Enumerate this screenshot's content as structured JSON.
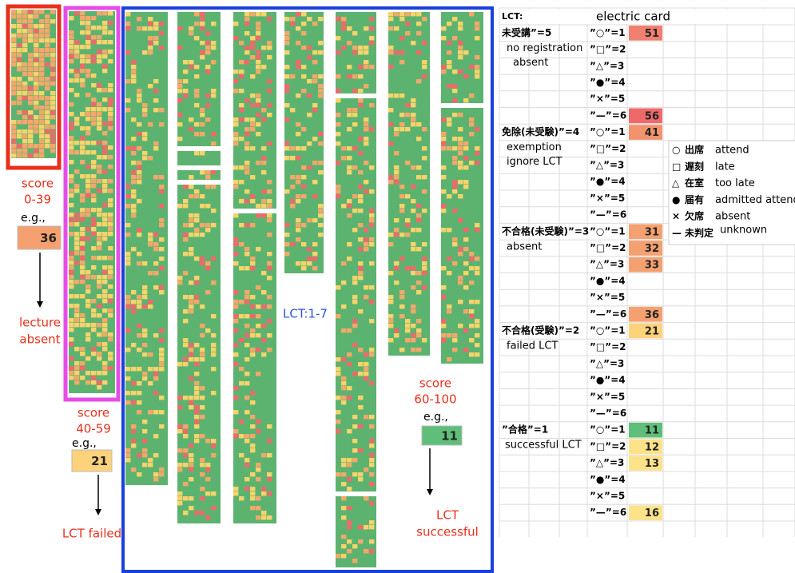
{
  "examples": [
    {
      "score": "score",
      "range": "0-39",
      "eg": "e.g.,",
      "value": "36",
      "color": "#f5a070",
      "outcome": [
        "lecture",
        "absent"
      ]
    },
    {
      "score": "score",
      "range": "40-59",
      "eg": "e.g.,",
      "value": "21",
      "color": "#fcd27a",
      "outcome": [
        "LCT failed"
      ]
    },
    {
      "score": "score",
      "range": "60-100",
      "eg": "e.g.,",
      "value": "11",
      "color": "#5fbf7a",
      "outcome": [
        "LCT",
        "successful"
      ]
    }
  ],
  "center_label": "LCT:1-7",
  "table": {
    "header_left": "LCT:",
    "header_right": "electric card",
    "sections": [
      {
        "label": "未受講”=5",
        "sub": [
          "no registration",
          "absent"
        ],
        "rows": [
          {
            "code": "”○”=1",
            "value": "51",
            "color": "#f08070"
          },
          {
            "code": "”□”=2"
          },
          {
            "code": "”△”=3"
          },
          {
            "code": "”●”=4"
          },
          {
            "code": "”×”=5"
          },
          {
            "code": "”—”=6",
            "value": "56",
            "color": "#ee6a6a"
          }
        ]
      },
      {
        "label": "免除(未受験)”=4",
        "sub": [
          "exemption",
          "ignore LCT"
        ],
        "rows": [
          {
            "code": "”○”=1",
            "value": "41",
            "color": "#f2936e"
          },
          {
            "code": "”□”=2"
          },
          {
            "code": "”△”=3"
          },
          {
            "code": "”●”=4"
          },
          {
            "code": "”×”=5"
          },
          {
            "code": "”—”=6"
          }
        ]
      },
      {
        "label": "不合格(未受験)”=3",
        "sub": [
          "absent"
        ],
        "rows": [
          {
            "code": "”○”=1",
            "value": "31",
            "color": "#f5a070"
          },
          {
            "code": "”□”=2",
            "value": "32",
            "color": "#f5a070"
          },
          {
            "code": "”△”=3",
            "value": "33",
            "color": "#f5a070"
          },
          {
            "code": "”●”=4"
          },
          {
            "code": "”×”=5"
          },
          {
            "code": "”—”=6",
            "value": "36",
            "color": "#f5a070"
          }
        ]
      },
      {
        "label": "不合格(受験)”=2",
        "sub": [
          "failed LCT"
        ],
        "rows": [
          {
            "code": "”○”=1",
            "value": "21",
            "color": "#fcd27a"
          },
          {
            "code": "”□”=2"
          },
          {
            "code": "”△”=3"
          },
          {
            "code": "”●”=4"
          },
          {
            "code": "”×”=5"
          },
          {
            "code": "”—”=6"
          }
        ]
      },
      {
        "label": "”合格”=1",
        "sub": [
          "successful LCT"
        ],
        "rows": [
          {
            "code": "”○”=1",
            "value": "11",
            "color": "#5fbf7a"
          },
          {
            "code": "”□”=2",
            "value": "12",
            "color": "#fce38a"
          },
          {
            "code": "”△”=3",
            "value": "13",
            "color": "#fce38a"
          },
          {
            "code": "”●”=4"
          },
          {
            "code": "”×”=5"
          },
          {
            "code": "”—”=6",
            "value": "16",
            "color": "#fce38a"
          }
        ]
      }
    ]
  },
  "legend": [
    {
      "symbol": "○",
      "ja": "出席",
      "en": "attend"
    },
    {
      "symbol": "□",
      "ja": "遅刻",
      "en": "late"
    },
    {
      "symbol": "△",
      "ja": "在室",
      "en": "too late"
    },
    {
      "symbol": "●",
      "ja": "届有",
      "en": "admitted attend"
    },
    {
      "symbol": "×",
      "ja": "欠席",
      "en": "absent"
    },
    {
      "symbol": "—",
      "ja": "未判定",
      "en": "unknown"
    }
  ]
}
